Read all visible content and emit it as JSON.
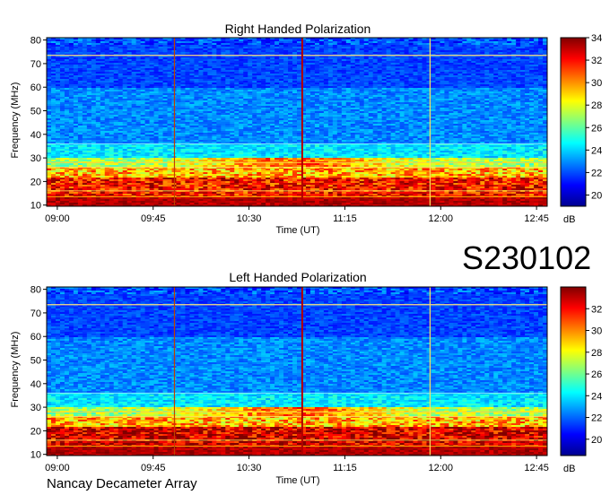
{
  "label": "S230102",
  "footer": "Nancay Decameter Array",
  "chart_data": [
    {
      "type": "heatmap",
      "title": "Right Handed Polarization",
      "xlabel": "Time (UT)",
      "ylabel": "Frequency (MHz)",
      "xticks": [
        "09:00",
        "09:45",
        "10:30",
        "11:15",
        "12:00",
        "12:45"
      ],
      "xlim": [
        "08:55",
        "12:50"
      ],
      "yticks": [
        10,
        20,
        30,
        40,
        50,
        60,
        70,
        80
      ],
      "ylim": [
        9.5,
        81
      ],
      "colorbar": {
        "label": "dB",
        "ticks": [
          20,
          22,
          24,
          26,
          28,
          30,
          32,
          34
        ],
        "range": [
          19,
          34
        ]
      },
      "vertical_lines": [
        "09:55",
        "10:55",
        "11:55"
      ]
    },
    {
      "type": "heatmap",
      "title": "Left Handed Polarization",
      "xlabel": "Time (UT)",
      "ylabel": "Frequency (MHz)",
      "xticks": [
        "09:00",
        "09:45",
        "10:30",
        "11:15",
        "12:00",
        "12:45"
      ],
      "xlim": [
        "08:55",
        "12:50"
      ],
      "yticks": [
        10,
        20,
        30,
        40,
        50,
        60,
        70,
        80
      ],
      "ylim": [
        9.5,
        81
      ],
      "colorbar": {
        "label": "dB",
        "ticks": [
          20,
          22,
          24,
          26,
          28,
          30,
          32
        ],
        "range": [
          18.5,
          34
        ]
      },
      "vertical_lines": [
        "09:55",
        "10:55",
        "11:55"
      ]
    }
  ],
  "colors": {
    "low": "#00008f",
    "mid": "#00c8ff",
    "high": "#ffd000",
    "max": "#a00000"
  }
}
